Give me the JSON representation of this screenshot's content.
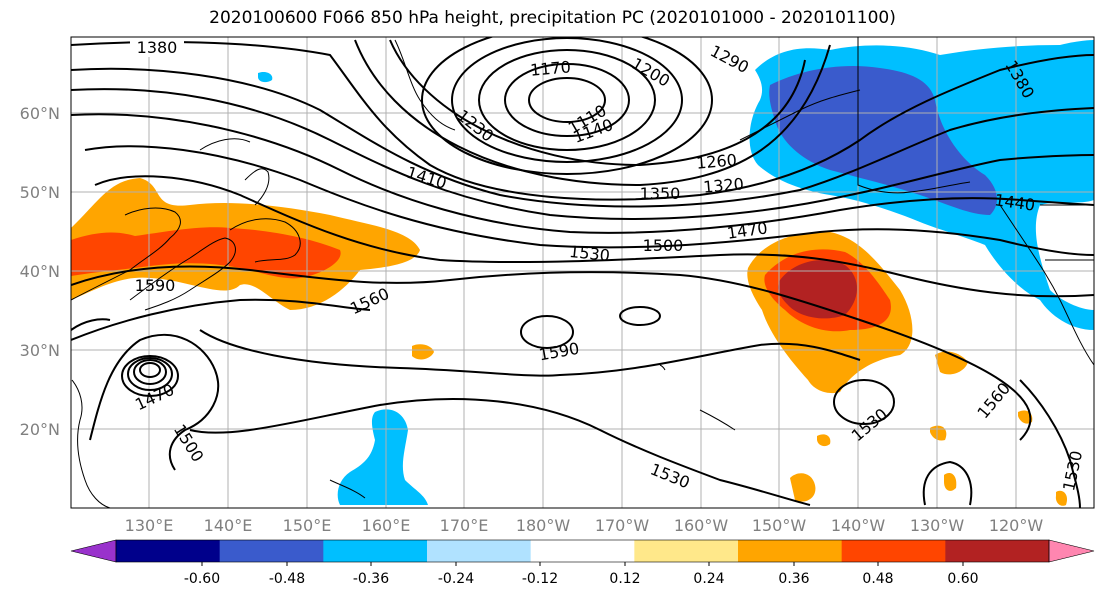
{
  "title": "2020100600 F066 850 hPa height, precipitation PC (2020101000 - 2020101100)",
  "lat_labels": [
    "60°N",
    "50°N",
    "40°N",
    "30°N",
    "20°N"
  ],
  "lon_labels": [
    "130°E",
    "140°E",
    "150°E",
    "160°E",
    "170°E",
    "180°W",
    "170°W",
    "160°W",
    "150°W",
    "140°W",
    "130°W",
    "120°W"
  ],
  "contour_labels": [
    "1380",
    "1170",
    "1200",
    "1290",
    "1380",
    "1110",
    "1140",
    "1230",
    "1260",
    "1410",
    "1350",
    "1320",
    "1440",
    "1500",
    "1470",
    "1530",
    "1590",
    "1560",
    "1590",
    "1470",
    "1500",
    "1530",
    "1530",
    "1560",
    "1530"
  ],
  "colorbar": {
    "tick_labels": [
      "-0.60",
      "-0.48",
      "-0.36",
      "-0.24",
      "-0.12",
      "0.12",
      "0.24",
      "0.36",
      "0.48",
      "0.60"
    ],
    "colors": [
      "#9932cc",
      "#00008b",
      "#3a5bcc",
      "#00bfff",
      "#b0e2ff",
      "#ffffff",
      "#ffe88a",
      "#ffa500",
      "#ff4500",
      "#b22222",
      "#ff86b0"
    ]
  }
}
